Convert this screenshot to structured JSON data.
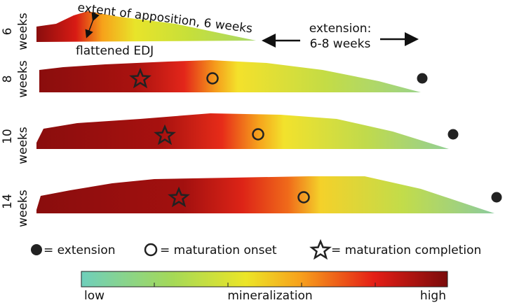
{
  "rows": [
    {
      "number": "6",
      "unit": "weeks"
    },
    {
      "number": "8",
      "unit": "weeks"
    },
    {
      "number": "10",
      "unit": "weeks"
    },
    {
      "number": "14",
      "unit": "weeks"
    }
  ],
  "annotations": {
    "apposition": "extent of apposition, 6 weeks",
    "edj": "flattened EDJ",
    "extension_title": "extension:",
    "extension_range": "6-8 weeks"
  },
  "legend": {
    "extension": "= extension",
    "maturation_onset": "= maturation onset",
    "maturation_completion": "= maturation completion"
  },
  "colorbar": {
    "low": "low",
    "title": "mineralization",
    "high": "high"
  }
}
